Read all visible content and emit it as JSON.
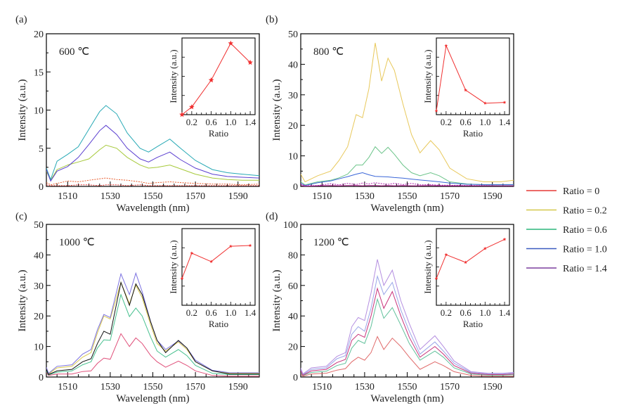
{
  "chart_data": [
    {
      "type": "line",
      "panel": "(a)",
      "annotation": "600 ℃",
      "xlabel": "Wavelength (nm)",
      "ylabel": "Intensity (a.u.)",
      "xlim": [
        1500,
        1600
      ],
      "ylim": [
        0,
        20
      ],
      "xticks": [
        1510,
        1530,
        1550,
        1570,
        1590
      ],
      "yticks": [
        0,
        5,
        10,
        15,
        20
      ],
      "x": [
        1500,
        1502,
        1505,
        1510,
        1515,
        1520,
        1525,
        1528,
        1533,
        1538,
        1544,
        1548,
        1552,
        1558,
        1563,
        1570,
        1578,
        1585,
        1592,
        1600
      ],
      "series": [
        {
          "name": "Ratio = 0",
          "values": [
            0.2,
            0.1,
            0.1,
            0.1,
            0.2,
            0.2,
            0.1,
            0.2,
            0.2,
            0.1,
            0.2,
            0.1,
            0.1,
            0.1,
            0.1,
            0.1,
            0.1,
            0.1,
            0.1,
            0.1
          ]
        },
        {
          "name": "Ratio = 0.2",
          "values": [
            0.5,
            0.2,
            0.4,
            0.7,
            0.6,
            0.8,
            1.0,
            1.1,
            0.9,
            0.8,
            0.6,
            0.4,
            0.5,
            0.6,
            0.5,
            0.4,
            0.3,
            0.3,
            0.2,
            0.3
          ]
        },
        {
          "name": "Ratio = 0.6",
          "values": [
            2.0,
            0.8,
            2.2,
            2.8,
            3.2,
            3.6,
            4.8,
            5.4,
            5.0,
            3.8,
            2.8,
            2.4,
            2.5,
            2.8,
            2.3,
            1.6,
            1.1,
            0.9,
            0.8,
            0.8
          ]
        },
        {
          "name": "Ratio = 1.0",
          "values": [
            2.4,
            0.9,
            3.3,
            4.2,
            5.2,
            7.5,
            9.8,
            10.6,
            9.5,
            7.0,
            5.0,
            4.5,
            5.2,
            6.2,
            5.0,
            3.4,
            2.2,
            1.8,
            1.6,
            1.4
          ]
        },
        {
          "name": "Ratio = 1.4",
          "values": [
            2.2,
            0.7,
            2.0,
            2.6,
            3.8,
            5.5,
            7.3,
            8.0,
            6.8,
            5.0,
            3.6,
            3.2,
            3.8,
            4.5,
            3.5,
            2.4,
            1.6,
            1.3,
            1.2,
            1.1
          ]
        }
      ],
      "inset": {
        "type": "line",
        "xlabel": "Ratio",
        "ylabel": "Intensity (a.u.)",
        "xticks": [
          0.2,
          0.6,
          1.0,
          1.4
        ],
        "x": [
          0,
          0.2,
          0.6,
          1.0,
          1.4
        ],
        "values": [
          0.0,
          0.1,
          0.45,
          0.93,
          0.68
        ]
      }
    },
    {
      "type": "line",
      "panel": "(b)",
      "annotation": "800 ℃",
      "xlabel": "Wavelength (nm)",
      "ylabel": "Intensity (a.u.)",
      "xlim": [
        1500,
        1600
      ],
      "ylim": [
        0,
        50
      ],
      "xticks": [
        1510,
        1530,
        1550,
        1570,
        1590
      ],
      "yticks": [
        0,
        10,
        20,
        30,
        40,
        50
      ],
      "x": [
        1500,
        1502,
        1508,
        1514,
        1518,
        1522,
        1526,
        1529,
        1532,
        1535,
        1538,
        1541,
        1544,
        1548,
        1552,
        1556,
        1561,
        1565,
        1570,
        1578,
        1586,
        1594,
        1600
      ],
      "series": [
        {
          "name": "Ratio = 0",
          "values": [
            0.3,
            0.1,
            0.2,
            0.3,
            0.2,
            0.3,
            0.3,
            0.2,
            0.3,
            0.3,
            0.2,
            0.3,
            0.2,
            0.3,
            0.2,
            0.2,
            0.3,
            0.2,
            0.2,
            0.2,
            0.2,
            0.2,
            0.2
          ]
        },
        {
          "name": "Ratio = 0.2",
          "values": [
            4.0,
            1.5,
            3.5,
            5.0,
            8.5,
            13.0,
            23.5,
            22.5,
            32.0,
            47.0,
            34.5,
            42.0,
            38.0,
            27.0,
            17.0,
            11.0,
            15.0,
            12.0,
            6.0,
            2.5,
            1.5,
            1.5,
            2.0
          ]
        },
        {
          "name": "Ratio = 0.6",
          "values": [
            1.5,
            0.5,
            1.5,
            2.0,
            2.8,
            4.0,
            7.0,
            7.0,
            9.5,
            13.0,
            10.8,
            12.8,
            10.5,
            7.0,
            4.5,
            3.5,
            4.5,
            3.5,
            1.5,
            0.8,
            0.5,
            0.5,
            0.5
          ]
        },
        {
          "name": "Ratio = 1.0",
          "values": [
            1.0,
            0.3,
            1.2,
            1.8,
            2.5,
            3.2,
            4.0,
            4.5,
            3.8,
            3.3,
            3.2,
            3.1,
            2.9,
            2.7,
            2.4,
            2.1,
            1.8,
            1.5,
            1.1,
            0.7,
            0.6,
            0.6,
            0.6
          ]
        },
        {
          "name": "Ratio = 1.4",
          "values": [
            0.8,
            0.2,
            0.3,
            0.9,
            0.5,
            1.0,
            0.6,
            1.1,
            0.8,
            1.2,
            0.9,
            0.7,
            1.0,
            0.6,
            1.0,
            0.5,
            0.6,
            0.4,
            0.4,
            0.3,
            0.3,
            0.2,
            0.2
          ]
        }
      ],
      "inset": {
        "type": "line",
        "xlabel": "Ratio",
        "ylabel": "Intensity (a.u.)",
        "xticks": [
          0.2,
          0.6,
          1.0,
          1.4
        ],
        "x": [
          0,
          0.2,
          0.6,
          1.0,
          1.4
        ],
        "values": [
          0.05,
          0.9,
          0.32,
          0.15,
          0.16
        ]
      }
    },
    {
      "type": "line",
      "panel": "(c)",
      "annotation": "1000 ℃",
      "xlabel": "Wavelength (nm)",
      "ylabel": "Intensity (a.u.)",
      "xlim": [
        1500,
        1600
      ],
      "ylim": [
        0,
        50
      ],
      "xticks": [
        1510,
        1530,
        1550,
        1570,
        1590
      ],
      "yticks": [
        0,
        10,
        20,
        30,
        40,
        50
      ],
      "x": [
        1500,
        1501,
        1505,
        1512,
        1517,
        1521,
        1524,
        1527,
        1530,
        1535,
        1539,
        1542,
        1545,
        1549,
        1552,
        1556,
        1562,
        1566,
        1570,
        1578,
        1586,
        1594,
        1600
      ],
      "series": [
        {
          "name": "Ratio = 0",
          "values": [
            1.5,
            0.5,
            1.0,
            1.0,
            1.8,
            2.0,
            4.5,
            6.2,
            5.8,
            14.2,
            10.0,
            12.8,
            11.0,
            7.0,
            5.0,
            3.2,
            5.2,
            3.8,
            2.0,
            0.5,
            0.3,
            0.3,
            0.3
          ]
        },
        {
          "name": "Ratio = 0.2",
          "values": [
            3.0,
            1.0,
            3.0,
            3.5,
            6.5,
            8.0,
            14.5,
            20.0,
            19.0,
            31.0,
            24.0,
            30.0,
            26.0,
            17.0,
            11.0,
            8.5,
            11.5,
            9.0,
            5.0,
            2.0,
            1.2,
            1.2,
            1.2
          ]
        },
        {
          "name": "Ratio = 0.6",
          "values": [
            2.0,
            0.7,
            1.6,
            2.0,
            4.0,
            5.0,
            9.5,
            12.2,
            12.0,
            27.0,
            19.8,
            22.6,
            20.0,
            13.0,
            8.5,
            6.5,
            9.0,
            7.0,
            3.8,
            1.2,
            0.8,
            0.8,
            0.8
          ]
        },
        {
          "name": "Ratio = 1.0",
          "values": [
            3.2,
            1.2,
            3.5,
            4.0,
            7.5,
            9.0,
            15.5,
            20.5,
            19.5,
            33.8,
            27.0,
            34.0,
            28.0,
            18.0,
            12.0,
            9.0,
            11.8,
            9.5,
            5.5,
            2.2,
            1.4,
            1.4,
            1.4
          ]
        },
        {
          "name": "Ratio = 1.4",
          "values": [
            2.5,
            0.8,
            2.0,
            2.5,
            5.0,
            6.0,
            11.0,
            15.0,
            14.0,
            31.0,
            23.5,
            30.5,
            27.0,
            18.0,
            12.0,
            8.0,
            12.0,
            9.5,
            5.0,
            2.0,
            1.0,
            1.0,
            1.0
          ]
        }
      ],
      "inset": {
        "type": "line",
        "xlabel": "Ratio",
        "ylabel": "Intensity (a.u.)",
        "xticks": [
          0.2,
          0.6,
          1.0,
          1.4
        ],
        "x": [
          0,
          0.2,
          0.6,
          1.0,
          1.4
        ],
        "values": [
          0.35,
          0.68,
          0.57,
          0.77,
          0.78
        ]
      }
    },
    {
      "type": "line",
      "panel": "(d)",
      "annotation": "1200 ℃",
      "xlabel": "Wavelength (nm)",
      "ylabel": "Intensity (a.u.)",
      "xlim": [
        1500,
        1600
      ],
      "ylim": [
        0,
        100
      ],
      "xticks": [
        1510,
        1530,
        1550,
        1570,
        1590
      ],
      "yticks": [
        0,
        20,
        40,
        60,
        80,
        100
      ],
      "x": [
        1500,
        1501,
        1505,
        1512,
        1517,
        1521,
        1524,
        1527,
        1530,
        1533,
        1536,
        1539,
        1543,
        1547,
        1551,
        1556,
        1563,
        1567,
        1572,
        1580,
        1588,
        1595,
        1600
      ],
      "series": [
        {
          "name": "Ratio = 0",
          "values": [
            2.0,
            0.5,
            2.0,
            2.5,
            4.5,
            5.5,
            10.0,
            13.0,
            11.0,
            16.0,
            26.5,
            18.0,
            25.5,
            20.0,
            13.0,
            5.0,
            10.0,
            7.5,
            3.5,
            1.0,
            0.5,
            0.5,
            0.5
          ]
        },
        {
          "name": "Ratio = 0.2",
          "values": [
            5.0,
            1.5,
            5.0,
            6.0,
            12.0,
            14.0,
            28.0,
            33.0,
            30.0,
            45.0,
            66.0,
            54.0,
            62.0,
            44.0,
            30.0,
            15.0,
            23.0,
            17.0,
            9.0,
            3.0,
            2.0,
            2.0,
            2.5
          ]
        },
        {
          "name": "Ratio = 0.6",
          "values": [
            3.0,
            1.0,
            3.0,
            3.8,
            7.5,
            9.0,
            19.0,
            24.0,
            22.0,
            33.0,
            51.0,
            38.5,
            45.5,
            34.0,
            22.0,
            11.0,
            17.0,
            13.0,
            6.0,
            2.0,
            1.2,
            1.2,
            1.5
          ]
        },
        {
          "name": "Ratio = 1.0",
          "values": [
            4.0,
            1.2,
            4.0,
            5.0,
            9.5,
            11.5,
            24.0,
            28.0,
            26.0,
            40.0,
            58.0,
            45.0,
            56.0,
            40.0,
            26.0,
            13.0,
            20.0,
            15.0,
            7.5,
            2.5,
            1.6,
            1.6,
            2.0
          ]
        },
        {
          "name": "Ratio = 1.4",
          "values": [
            6.0,
            2.0,
            6.0,
            7.0,
            13.5,
            16.0,
            33.0,
            39.0,
            37.0,
            55.0,
            77.0,
            60.0,
            70.0,
            50.0,
            35.0,
            18.0,
            27.0,
            20.0,
            10.5,
            3.5,
            2.5,
            2.5,
            3.0
          ]
        }
      ],
      "inset": {
        "type": "line",
        "xlabel": "Ratio",
        "ylabel": "Intensity (a.u.)",
        "xticks": [
          0.2,
          0.6,
          1.0,
          1.4
        ],
        "x": [
          0,
          0.2,
          0.6,
          1.0,
          1.4
        ],
        "values": [
          0.35,
          0.66,
          0.56,
          0.74,
          0.86
        ]
      }
    }
  ],
  "legend": {
    "placement": "right",
    "entries": [
      {
        "label": "Ratio = 0",
        "color": "#e53935"
      },
      {
        "label": "Ratio = 0.2",
        "color": "#d4c84a"
      },
      {
        "label": "Ratio = 0.6",
        "color": "#2bb57a"
      },
      {
        "label": "Ratio = 1.0",
        "color": "#3a5bbf"
      },
      {
        "label": "Ratio = 1.4",
        "color": "#7b3f9e"
      }
    ]
  },
  "inset_color": "#f03030"
}
